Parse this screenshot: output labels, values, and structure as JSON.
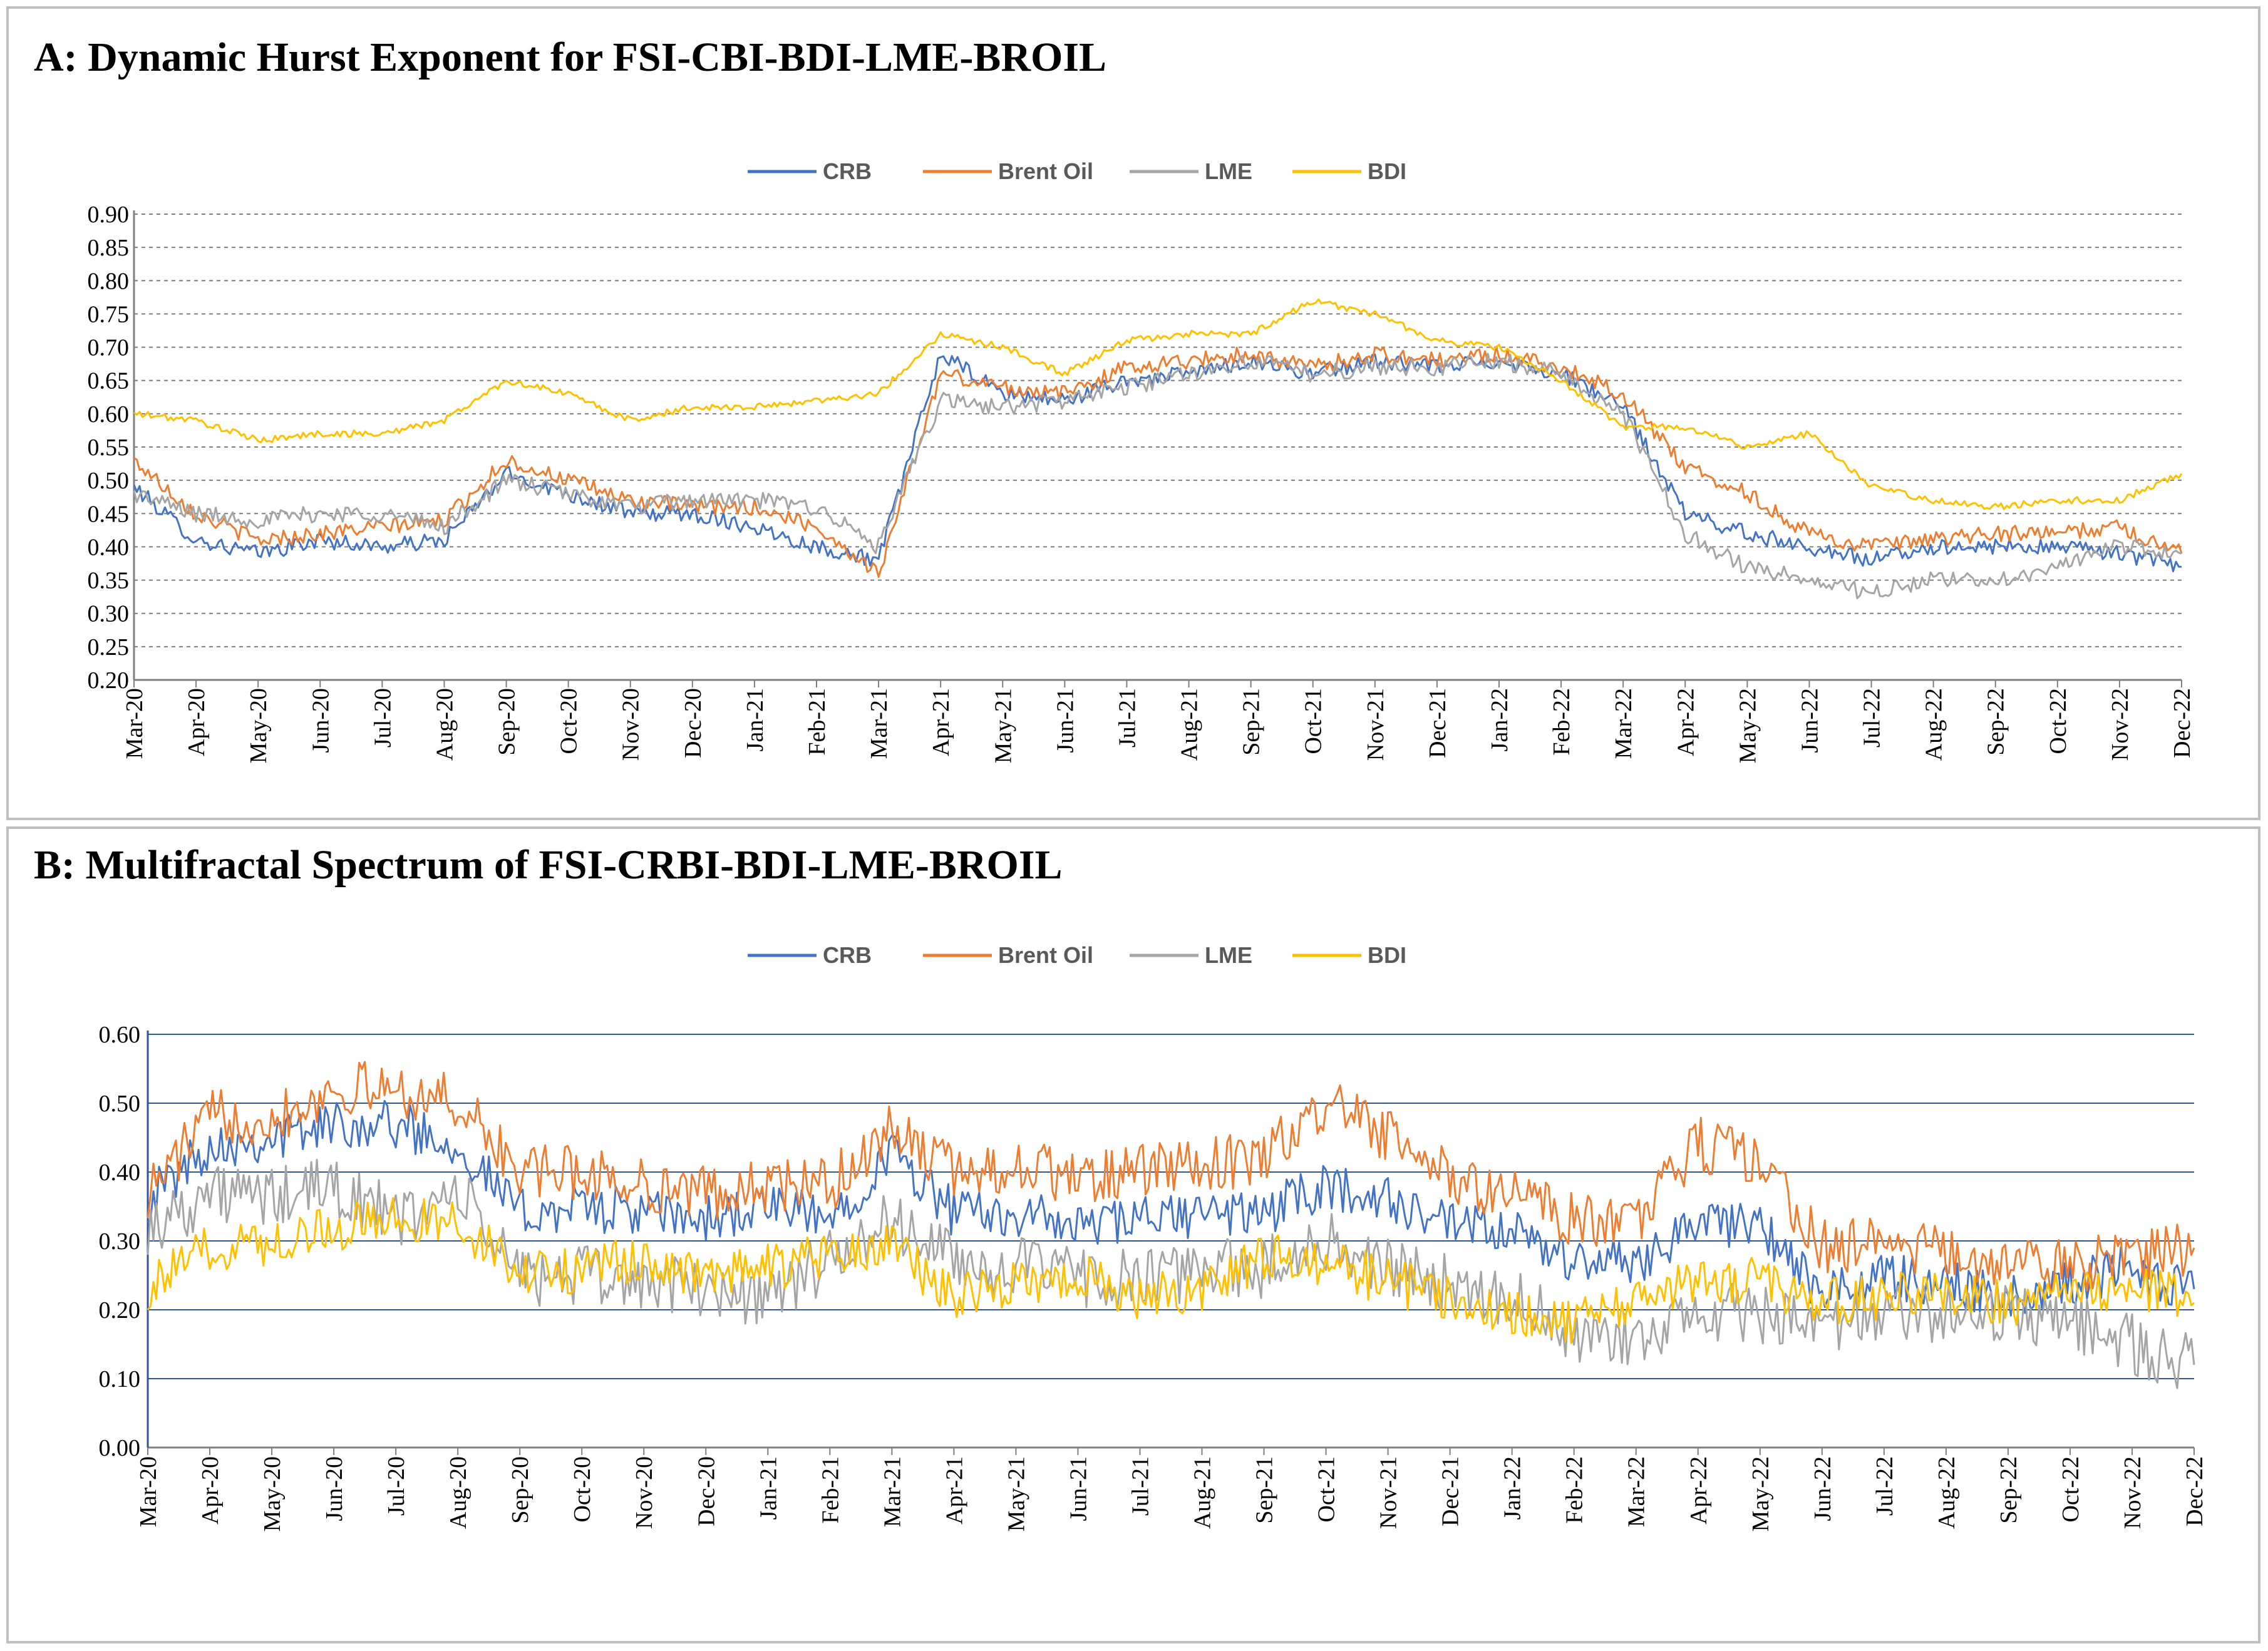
{
  "chart_data": [
    {
      "id": "A",
      "type": "line",
      "title": "A: Dynamic Hurst Exponent for FSI-CBI-BDI-LME-BROIL",
      "xlabel": "",
      "ylabel": "",
      "categories": [
        "Mar-20",
        "Apr-20",
        "May-20",
        "Jun-20",
        "Jul-20",
        "Aug-20",
        "Sep-20",
        "Oct-20",
        "Nov-20",
        "Dec-20",
        "Jan-21",
        "Feb-21",
        "Mar-21",
        "Apr-21",
        "May-21",
        "Jun-21",
        "Jul-21",
        "Aug-21",
        "Sep-21",
        "Oct-21",
        "Nov-21",
        "Dec-21",
        "Jan-22",
        "Feb-22",
        "Mar-22",
        "Apr-22",
        "May-22",
        "Jun-22",
        "Jul-22",
        "Aug-22",
        "Sep-22",
        "Oct-22",
        "Nov-22",
        "Dec-22"
      ],
      "ylim": [
        0.2,
        0.9
      ],
      "yticks": [
        "0.20",
        "0.25",
        "0.30",
        "0.35",
        "0.40",
        "0.45",
        "0.50",
        "0.55",
        "0.60",
        "0.65",
        "0.70",
        "0.75",
        "0.80",
        "0.85",
        "0.90"
      ],
      "grid": "dashed-horizontal",
      "legend": "top-center",
      "series": [
        {
          "name": "CRB",
          "color": "#4472C4",
          "noise": 0.012,
          "values": [
            0.49,
            0.41,
            0.39,
            0.41,
            0.4,
            0.41,
            0.51,
            0.48,
            0.45,
            0.45,
            0.43,
            0.4,
            0.38,
            0.69,
            0.63,
            0.62,
            0.65,
            0.66,
            0.68,
            0.66,
            0.68,
            0.67,
            0.68,
            0.66,
            0.61,
            0.45,
            0.42,
            0.4,
            0.38,
            0.4,
            0.4,
            0.4,
            0.39,
            0.37
          ]
        },
        {
          "name": "Brent Oil",
          "color": "#ED7D31",
          "noise": 0.012,
          "values": [
            0.53,
            0.45,
            0.41,
            0.42,
            0.43,
            0.44,
            0.53,
            0.5,
            0.47,
            0.46,
            0.46,
            0.43,
            0.36,
            0.66,
            0.64,
            0.63,
            0.67,
            0.68,
            0.69,
            0.67,
            0.69,
            0.68,
            0.69,
            0.67,
            0.63,
            0.52,
            0.48,
            0.42,
            0.4,
            0.41,
            0.42,
            0.42,
            0.43,
            0.39
          ]
        },
        {
          "name": "LME",
          "color": "#A5A5A5",
          "noise": 0.013,
          "values": [
            0.48,
            0.45,
            0.44,
            0.45,
            0.45,
            0.43,
            0.5,
            0.48,
            0.46,
            0.47,
            0.47,
            0.46,
            0.4,
            0.62,
            0.61,
            0.62,
            0.64,
            0.66,
            0.68,
            0.66,
            0.67,
            0.67,
            0.68,
            0.66,
            0.6,
            0.42,
            0.37,
            0.35,
            0.33,
            0.35,
            0.35,
            0.37,
            0.4,
            0.39
          ]
        },
        {
          "name": "BDI",
          "color": "#FFC000",
          "noise": 0.005,
          "values": [
            0.6,
            0.59,
            0.56,
            0.57,
            0.57,
            0.59,
            0.65,
            0.63,
            0.59,
            0.61,
            0.61,
            0.62,
            0.63,
            0.72,
            0.7,
            0.66,
            0.71,
            0.72,
            0.72,
            0.77,
            0.75,
            0.71,
            0.7,
            0.65,
            0.58,
            0.58,
            0.55,
            0.57,
            0.49,
            0.47,
            0.46,
            0.47,
            0.47,
            0.51
          ]
        }
      ]
    },
    {
      "id": "B",
      "type": "line",
      "title": "B: Multifractal Spectrum of FSI-CRBI-BDI-LME-BROIL",
      "xlabel": "",
      "ylabel": "",
      "categories": [
        "Mar-20",
        "Apr-20",
        "May-20",
        "Jun-20",
        "Jul-20",
        "Aug-20",
        "Sep-20",
        "Oct-20",
        "Nov-20",
        "Dec-20",
        "Jan-21",
        "Feb-21",
        "Mar-21",
        "Apr-21",
        "May-21",
        "Jun-21",
        "Jul-21",
        "Aug-21",
        "Sep-21",
        "Oct-21",
        "Nov-21",
        "Dec-21",
        "Jan-22",
        "Feb-22",
        "Mar-22",
        "Apr-22",
        "May-22",
        "Jun-22",
        "Jul-22",
        "Aug-22",
        "Sep-22",
        "Oct-22",
        "Nov-22",
        "Dec-22"
      ],
      "ylim": [
        0.0,
        0.6
      ],
      "yticks": [
        "0.00",
        "0.10",
        "0.20",
        "0.30",
        "0.40",
        "0.50",
        "0.60"
      ],
      "grid": "solid-horizontal",
      "legend": "top-center",
      "series": [
        {
          "name": "CRB",
          "color": "#4472C4",
          "noise": 0.035,
          "values": [
            0.36,
            0.44,
            0.45,
            0.47,
            0.47,
            0.44,
            0.34,
            0.35,
            0.34,
            0.33,
            0.35,
            0.33,
            0.43,
            0.34,
            0.34,
            0.32,
            0.33,
            0.34,
            0.34,
            0.38,
            0.36,
            0.32,
            0.31,
            0.27,
            0.27,
            0.33,
            0.32,
            0.22,
            0.25,
            0.24,
            0.22,
            0.24,
            0.26,
            0.23
          ]
        },
        {
          "name": "Brent Oil",
          "color": "#ED7D31",
          "noise": 0.04,
          "values": [
            0.37,
            0.48,
            0.48,
            0.52,
            0.52,
            0.5,
            0.4,
            0.4,
            0.38,
            0.37,
            0.38,
            0.38,
            0.46,
            0.4,
            0.41,
            0.39,
            0.4,
            0.41,
            0.42,
            0.5,
            0.45,
            0.39,
            0.37,
            0.33,
            0.33,
            0.44,
            0.42,
            0.29,
            0.3,
            0.28,
            0.27,
            0.26,
            0.28,
            0.29
          ]
        },
        {
          "name": "LME",
          "color": "#A5A5A5",
          "noise": 0.045,
          "values": [
            0.32,
            0.37,
            0.36,
            0.38,
            0.33,
            0.37,
            0.25,
            0.25,
            0.24,
            0.23,
            0.22,
            0.27,
            0.33,
            0.27,
            0.26,
            0.25,
            0.24,
            0.26,
            0.26,
            0.3,
            0.26,
            0.24,
            0.22,
            0.16,
            0.15,
            0.2,
            0.19,
            0.17,
            0.19,
            0.2,
            0.19,
            0.18,
            0.15,
            0.12
          ]
        },
        {
          "name": "BDI",
          "color": "#FFC000",
          "noise": 0.035,
          "values": [
            0.23,
            0.29,
            0.3,
            0.32,
            0.33,
            0.33,
            0.25,
            0.26,
            0.27,
            0.25,
            0.26,
            0.28,
            0.29,
            0.22,
            0.24,
            0.25,
            0.22,
            0.23,
            0.28,
            0.27,
            0.24,
            0.22,
            0.2,
            0.18,
            0.21,
            0.25,
            0.24,
            0.21,
            0.22,
            0.22,
            0.21,
            0.22,
            0.24,
            0.21
          ]
        }
      ]
    }
  ]
}
